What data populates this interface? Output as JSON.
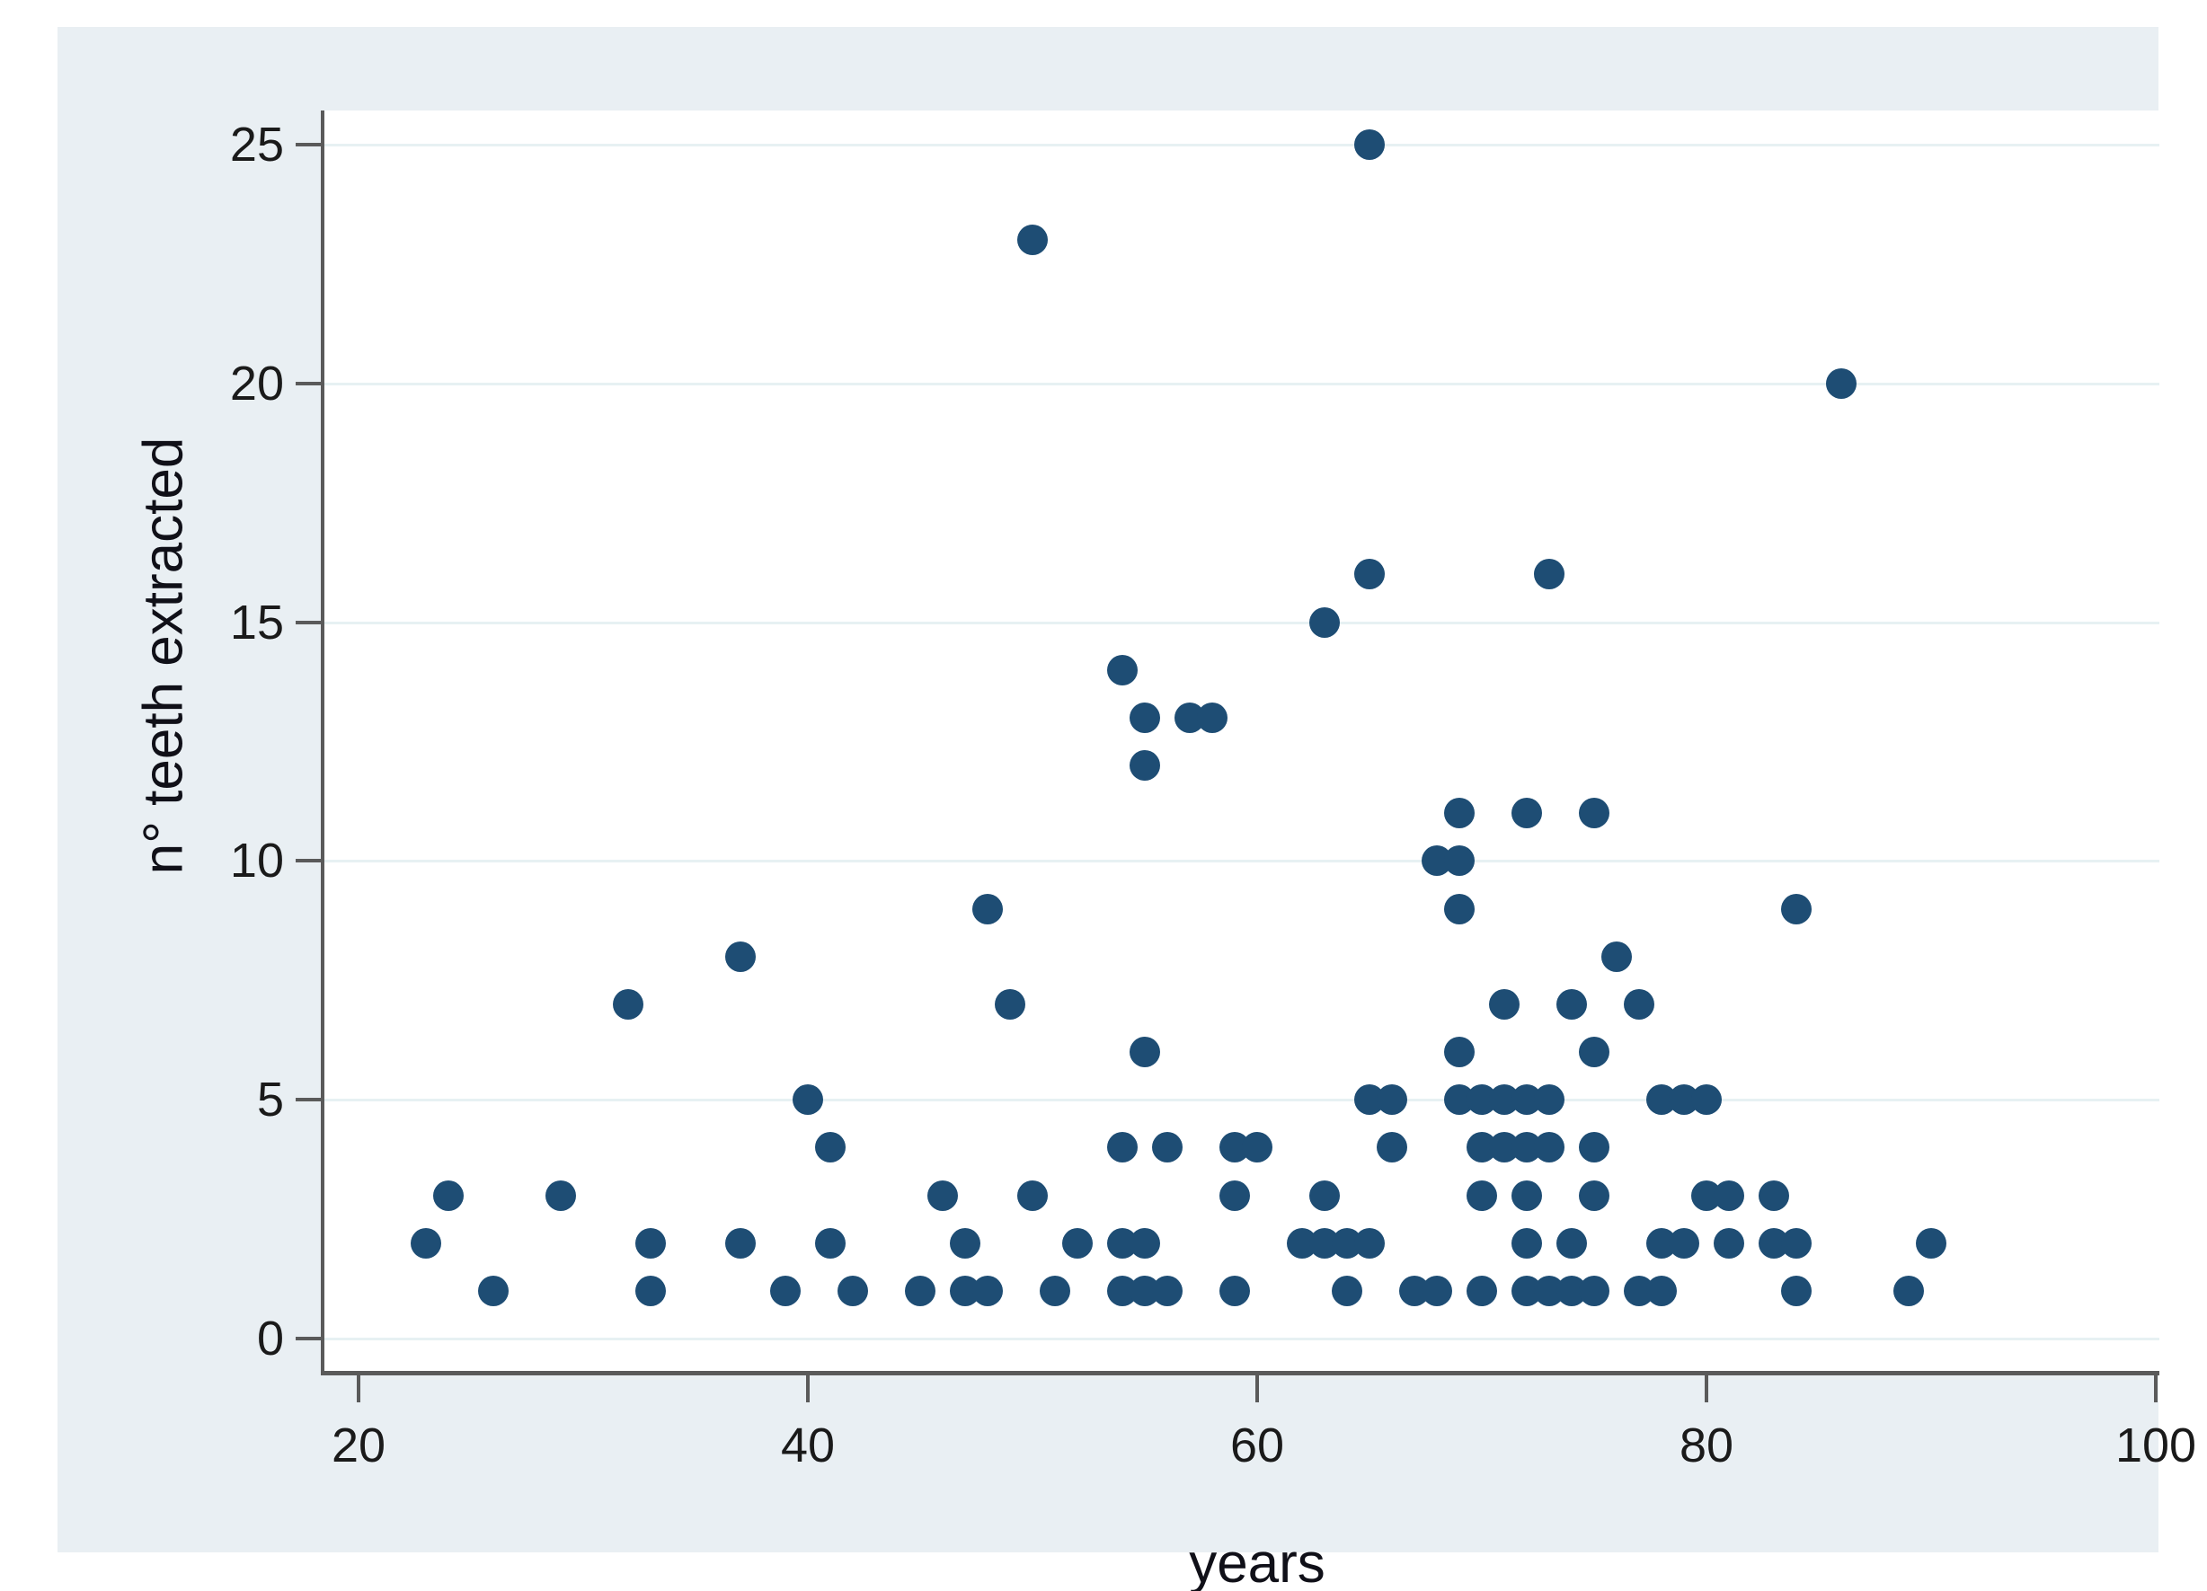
{
  "figure": {
    "background": "#ffffff",
    "panel_background": "#e9eff3",
    "plot_background": "#ffffff",
    "marker_color": "#1e4d74",
    "grid_color": "#e7f1f3",
    "axis_color": "#5a5a5a",
    "text_color": "#1a1a1a"
  },
  "chart_data": {
    "type": "scatter",
    "title": "",
    "xlabel": "years",
    "ylabel": "n° teeth extracted",
    "xlim": [
      18.5,
      100.5
    ],
    "ylim": [
      0,
      26.5
    ],
    "x_ticks": [
      20,
      40,
      60,
      80,
      100
    ],
    "y_ticks": [
      0,
      5,
      10,
      15,
      20,
      25
    ],
    "grid": "horizontal gridlines only, on all y ticks",
    "legend": "none",
    "points": [
      [
        23,
        2
      ],
      [
        24,
        3
      ],
      [
        26,
        1
      ],
      [
        29,
        3
      ],
      [
        32,
        7
      ],
      [
        33,
        1
      ],
      [
        33,
        2
      ],
      [
        37,
        2
      ],
      [
        37,
        8
      ],
      [
        39,
        1
      ],
      [
        40,
        5
      ],
      [
        41,
        2
      ],
      [
        41,
        4
      ],
      [
        42,
        1
      ],
      [
        45,
        1
      ],
      [
        46,
        3
      ],
      [
        47,
        1
      ],
      [
        47,
        2
      ],
      [
        48,
        1
      ],
      [
        48,
        9
      ],
      [
        49,
        7
      ],
      [
        50,
        3
      ],
      [
        50,
        23
      ],
      [
        51,
        1
      ],
      [
        52,
        2
      ],
      [
        54,
        1
      ],
      [
        54,
        2
      ],
      [
        54,
        4
      ],
      [
        54,
        14
      ],
      [
        55,
        1
      ],
      [
        55,
        2
      ],
      [
        55,
        6
      ],
      [
        55,
        12
      ],
      [
        55,
        13
      ],
      [
        56,
        1
      ],
      [
        56,
        4
      ],
      [
        57,
        13
      ],
      [
        58,
        13
      ],
      [
        59,
        1
      ],
      [
        59,
        3
      ],
      [
        59,
        4
      ],
      [
        60,
        4
      ],
      [
        62,
        2
      ],
      [
        63,
        2
      ],
      [
        63,
        3
      ],
      [
        63,
        15
      ],
      [
        64,
        1
      ],
      [
        64,
        2
      ],
      [
        65,
        2
      ],
      [
        65,
        5
      ],
      [
        65,
        16
      ],
      [
        65,
        25
      ],
      [
        66,
        4
      ],
      [
        66,
        5
      ],
      [
        67,
        1
      ],
      [
        68,
        1
      ],
      [
        68,
        10
      ],
      [
        69,
        5
      ],
      [
        69,
        6
      ],
      [
        69,
        9
      ],
      [
        69,
        10
      ],
      [
        69,
        11
      ],
      [
        70,
        1
      ],
      [
        70,
        3
      ],
      [
        70,
        4
      ],
      [
        70,
        5
      ],
      [
        71,
        4
      ],
      [
        71,
        5
      ],
      [
        71,
        7
      ],
      [
        72,
        1
      ],
      [
        72,
        2
      ],
      [
        72,
        3
      ],
      [
        72,
        4
      ],
      [
        72,
        5
      ],
      [
        72,
        11
      ],
      [
        73,
        1
      ],
      [
        73,
        4
      ],
      [
        73,
        5
      ],
      [
        73,
        16
      ],
      [
        74,
        1
      ],
      [
        74,
        2
      ],
      [
        74,
        7
      ],
      [
        75,
        1
      ],
      [
        75,
        3
      ],
      [
        75,
        4
      ],
      [
        75,
        6
      ],
      [
        75,
        11
      ],
      [
        76,
        8
      ],
      [
        77,
        1
      ],
      [
        77,
        7
      ],
      [
        78,
        1
      ],
      [
        78,
        2
      ],
      [
        78,
        5
      ],
      [
        79,
        2
      ],
      [
        79,
        5
      ],
      [
        80,
        3
      ],
      [
        80,
        5
      ],
      [
        81,
        2
      ],
      [
        81,
        3
      ],
      [
        83,
        2
      ],
      [
        83,
        3
      ],
      [
        84,
        1
      ],
      [
        84,
        2
      ],
      [
        84,
        9
      ],
      [
        86,
        20
      ],
      [
        89,
        1
      ],
      [
        90,
        2
      ]
    ]
  }
}
